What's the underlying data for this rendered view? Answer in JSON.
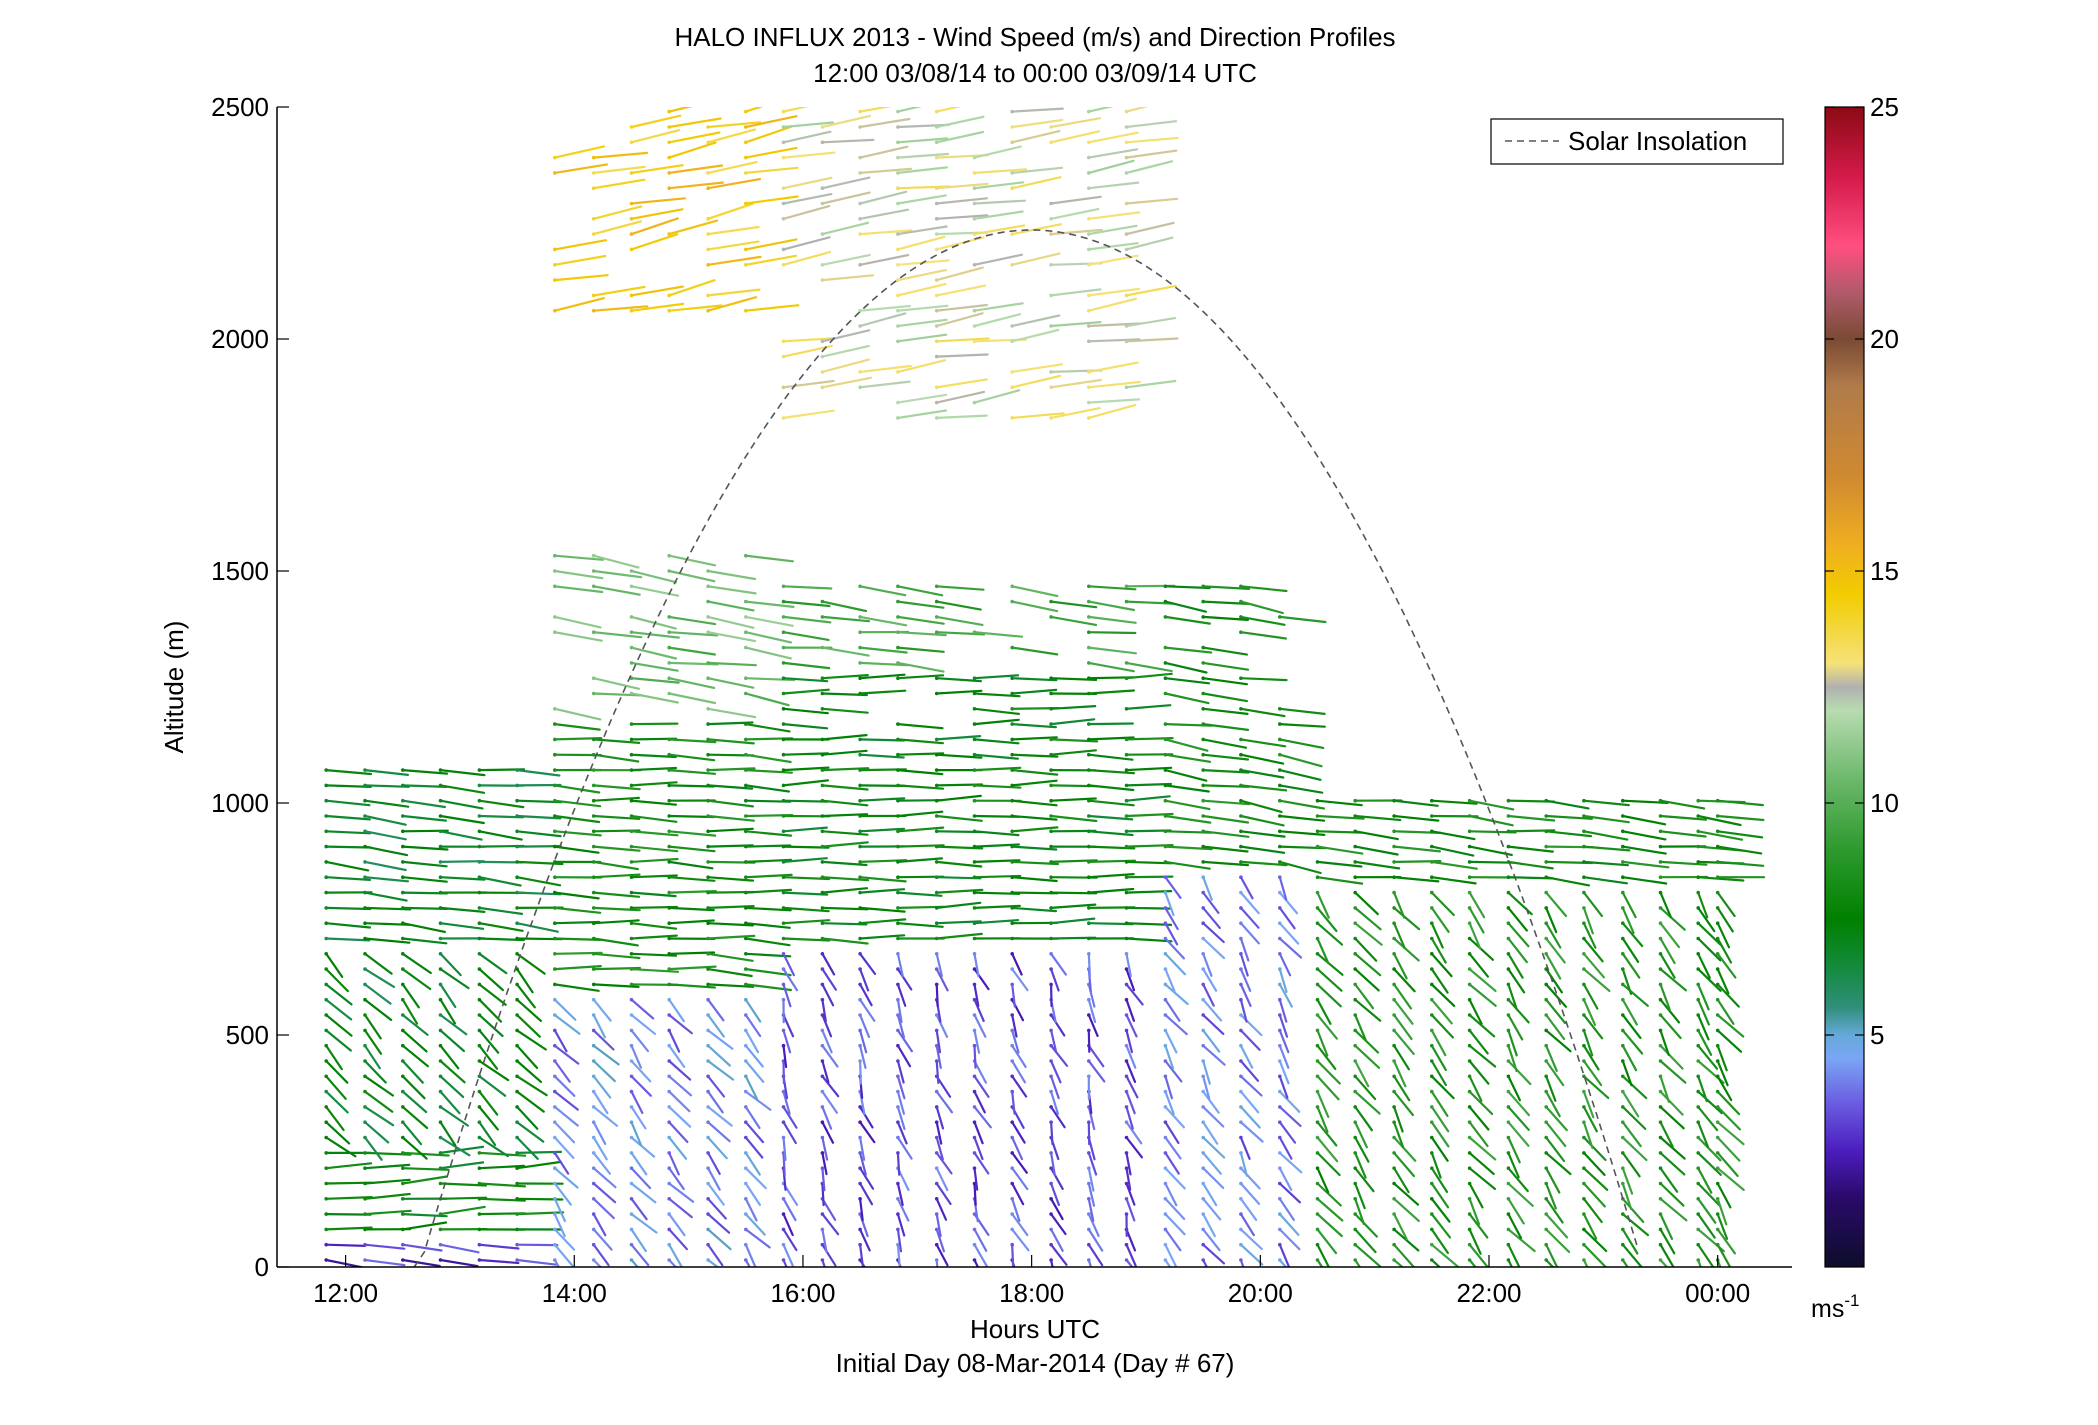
{
  "chart_data": {
    "type": "wind-barb-profile",
    "title": "HALO INFLUX 2013 - Wind Speed (m/s) and Direction Profiles",
    "subtitle": "12:00 03/08/14 to 00:00 03/09/14  UTC",
    "xlabel": "Hours UTC",
    "xlabel2": "Initial Day 08-Mar-2014 (Day # 67)",
    "ylabel": "Altitude (m)",
    "xlim": [
      11.4,
      24.65
    ],
    "ylim": [
      0,
      2500
    ],
    "x_ticks": [
      12,
      14,
      16,
      18,
      20,
      22,
      24
    ],
    "x_tick_labels": [
      "12:00",
      "14:00",
      "16:00",
      "18:00",
      "20:00",
      "22:00",
      "00:00"
    ],
    "y_ticks": [
      0,
      500,
      1000,
      1500,
      2000,
      2500
    ],
    "y_tick_labels": [
      "0",
      "500",
      "1000",
      "1500",
      "2000",
      "2500"
    ],
    "legend": {
      "label": "Solar Insolation",
      "position": "top-right",
      "style": "dashed",
      "color": "#555555"
    },
    "solar_insolation": {
      "start_hour": 12.6,
      "end_hour": 23.3,
      "peak_hour": 18.0,
      "peak_altitude": 2235
    },
    "colorbar": {
      "min": 0,
      "max": 25,
      "ticks": [
        5,
        10,
        15,
        20,
        25
      ],
      "tick_labels": [
        "5",
        "10",
        "15",
        "20",
        "25"
      ],
      "unit_label": "ms",
      "unit_exp": "-1",
      "stops": [
        {
          "v": 0,
          "c": "#0d0d2a"
        },
        {
          "v": 1.5,
          "c": "#2a0a6a"
        },
        {
          "v": 2.5,
          "c": "#4b1dbd"
        },
        {
          "v": 3.5,
          "c": "#6a5ae0"
        },
        {
          "v": 4.5,
          "c": "#7aa6f5"
        },
        {
          "v": 5.0,
          "c": "#66a8d8"
        },
        {
          "v": 5.6,
          "c": "#2f8f7a"
        },
        {
          "v": 6.5,
          "c": "#138a3a"
        },
        {
          "v": 7.5,
          "c": "#008000"
        },
        {
          "v": 9.0,
          "c": "#2e9a2e"
        },
        {
          "v": 10.5,
          "c": "#6bb86b"
        },
        {
          "v": 12.0,
          "c": "#b8dbb0"
        },
        {
          "v": 12.5,
          "c": "#b0b0b0"
        },
        {
          "v": 13.0,
          "c": "#f5e27a"
        },
        {
          "v": 14.5,
          "c": "#f2cc00"
        },
        {
          "v": 15.5,
          "c": "#f0b020"
        },
        {
          "v": 17.0,
          "c": "#d08a30"
        },
        {
          "v": 19.0,
          "c": "#b07a4a"
        },
        {
          "v": 20.0,
          "c": "#7a4a35"
        },
        {
          "v": 21.0,
          "c": "#b05a6a"
        },
        {
          "v": 22.0,
          "c": "#ff4f80"
        },
        {
          "v": 23.5,
          "c": "#d41a4a"
        },
        {
          "v": 25.0,
          "c": "#8b0a14"
        }
      ]
    },
    "profiles": {
      "times": [
        11.83,
        12.17,
        12.5,
        12.83,
        13.17,
        13.5,
        13.83,
        14.17,
        14.5,
        14.83,
        15.17,
        15.5,
        15.83,
        16.17,
        16.5,
        16.83,
        17.17,
        17.5,
        17.83,
        18.17,
        18.5,
        18.83,
        19.17,
        19.5,
        19.83,
        20.17,
        20.5,
        20.83,
        21.17,
        21.5,
        21.83,
        22.17,
        22.5,
        22.83,
        23.17,
        23.5,
        23.83,
        24.0
      ],
      "altitude_step_m": 33,
      "segments": [
        {
          "from": 11.83,
          "to": 13.5,
          "layers": [
            [
              0,
              80,
              3.0,
              100
            ],
            [
              80,
              260,
              7.5,
              85
            ],
            [
              260,
              700,
              7.0,
              150
            ],
            [
              700,
              1100,
              7.0,
              100
            ]
          ]
        },
        {
          "from": 13.5,
          "to": 15.5,
          "layers": [
            [
              0,
              600,
              4.2,
              155
            ],
            [
              600,
              1200,
              8.0,
              95
            ],
            [
              1200,
              1560,
              10.5,
              105
            ],
            [
              2050,
              2500,
              14.5,
              70
            ]
          ]
        },
        {
          "from": 15.5,
          "to": 18.83,
          "layers": [
            [
              0,
              700,
              3.3,
              168
            ],
            [
              700,
              1270,
              7.5,
              90
            ],
            [
              1270,
              1500,
              9.5,
              100
            ],
            [
              1800,
              2500,
              12.5,
              75
            ]
          ]
        },
        {
          "from": 18.83,
          "to": 20.17,
          "layers": [
            [
              0,
              850,
              4.0,
              160
            ],
            [
              850,
              1500,
              8.0,
              105
            ]
          ]
        },
        {
          "from": 20.17,
          "to": 24.0,
          "layers": [
            [
              0,
              820,
              8.5,
              158
            ],
            [
              820,
              1030,
              8.0,
              100
            ]
          ]
        }
      ]
    }
  }
}
